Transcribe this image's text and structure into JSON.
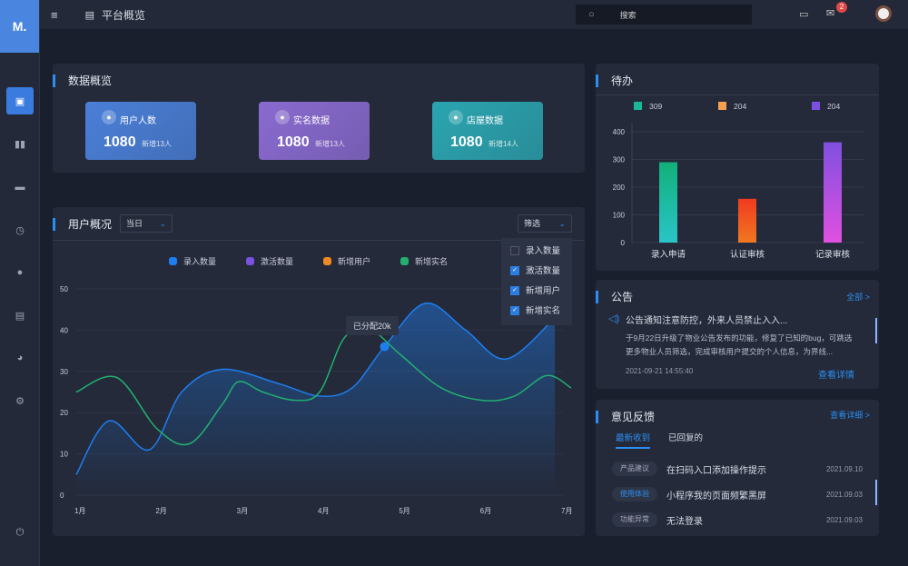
{
  "header": {
    "title": "平台概览",
    "search_placeholder": "搜索",
    "notification_count": "2"
  },
  "sidebar": {
    "icons": [
      "document-icon",
      "bar-chart-icon",
      "folder-icon",
      "clock-icon",
      "user-icon",
      "image-icon",
      "pie-chart-icon",
      "settings-icon",
      "power-icon"
    ]
  },
  "overview": {
    "title": "数据概览",
    "cards": [
      {
        "label": "用户人数",
        "value": "1080",
        "sub": "新增13人",
        "color": "#4a7fd8"
      },
      {
        "label": "实名数据",
        "value": "1080",
        "sub": "新增13人",
        "color": "#8a6ad0"
      },
      {
        "label": "店屋数据",
        "value": "1080",
        "sub": "新增14人",
        "color": "#2aa5b0"
      }
    ]
  },
  "users": {
    "title": "用户概况",
    "range": "当日",
    "filter": "筛选",
    "filter_options": [
      {
        "label": "录入数量",
        "checked": false
      },
      {
        "label": "激活数量",
        "checked": true
      },
      {
        "label": "新增用户",
        "checked": true
      },
      {
        "label": "新增实名",
        "checked": true
      }
    ],
    "tooltip": "已分配20k"
  },
  "chart_data": [
    {
      "type": "line",
      "legend": [
        {
          "name": "录入数量",
          "color": "#1e7ef0"
        },
        {
          "name": "激活数量",
          "color": "#7b52e0"
        },
        {
          "name": "新增用户",
          "color": "#f08a24"
        },
        {
          "name": "新增实名",
          "color": "#22b070"
        }
      ],
      "categories": [
        "1月",
        "2月",
        "3月",
        "4月",
        "5月",
        "6月",
        "7月"
      ],
      "ylim": [
        0,
        50
      ],
      "yticks": [
        "0",
        "10",
        "20",
        "30",
        "40",
        "50"
      ],
      "series": [
        {
          "name": "录入数量",
          "color": "#1e7ef0",
          "x": [
            1,
            1.4,
            1.9,
            2.3,
            2.8,
            3.5,
            4.0,
            4.4,
            4.8,
            5.3,
            5.8,
            6.3,
            6.9
          ],
          "y": [
            5,
            18,
            11,
            25,
            30.5,
            27,
            24,
            26,
            36,
            46.5,
            40,
            33,
            43
          ]
        },
        {
          "name": "新增实名",
          "color": "#22b070",
          "x": [
            1,
            1.5,
            2.0,
            2.4,
            2.8,
            3.0,
            3.3,
            3.7,
            4.0,
            4.3,
            4.6,
            5.0,
            5.5,
            6.0,
            6.4,
            6.8,
            7.1
          ],
          "y": [
            25,
            28.5,
            16,
            12.5,
            22,
            27.5,
            25,
            23,
            25,
            38,
            40.5,
            34,
            26,
            23,
            24,
            29,
            26
          ]
        }
      ]
    },
    {
      "type": "bar",
      "title": "待办",
      "categories": [
        "录入申请",
        "认证审核",
        "记录审核"
      ],
      "values": [
        290,
        158,
        362
      ],
      "ylim": [
        0,
        400
      ],
      "yticks": [
        "0",
        "100",
        "200",
        "300",
        "400"
      ],
      "legend": [
        {
          "name": "309",
          "color": "#1ab89a"
        },
        {
          "name": "204",
          "color": "#f5a050"
        },
        {
          "name": "204",
          "color": "#7b52e0"
        }
      ],
      "gradients": [
        [
          "#12b07a",
          "#2bc4c8"
        ],
        [
          "#f03a20",
          "#f07820"
        ],
        [
          "#8050e0",
          "#e050e0"
        ]
      ]
    }
  ],
  "notice": {
    "title": "公告",
    "all": "全部 >",
    "headline": "公告通知注意防控，外来人员禁止入入...",
    "body": "于9月22日升级了物业公告发布的功能，修复了已知的bug，可跳选更多物业人员筛选，完成审核用户提交的个人信息，为界线...",
    "time": "2021-09-21 14:55:40",
    "detail": "查看详情"
  },
  "feedback": {
    "title": "意见反馈",
    "more": "查看详细 >",
    "tabs": [
      "最新收到",
      "已回复的"
    ],
    "items": [
      {
        "tag": "产品建议",
        "text": "在扫码入口添加操作提示",
        "date": "2021.09.10",
        "blue": false
      },
      {
        "tag": "使用体验",
        "text": "小程序我的页面频繁黑屏",
        "date": "2021.09.03",
        "blue": true
      },
      {
        "tag": "功能异常",
        "text": "无法登录",
        "date": "2021.09.03",
        "blue": false
      }
    ]
  }
}
